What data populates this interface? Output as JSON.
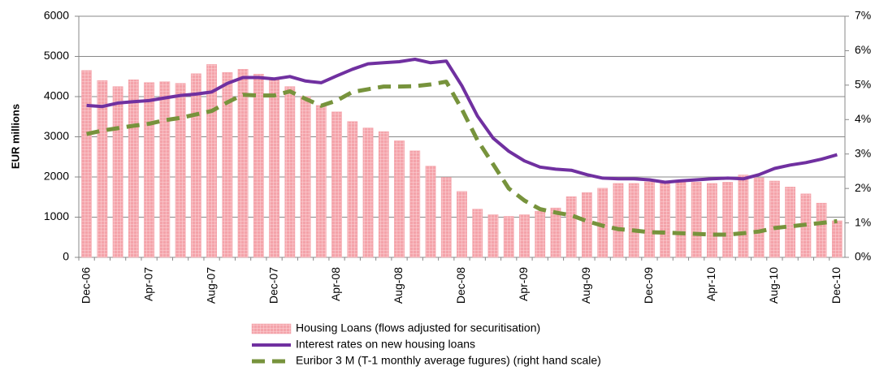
{
  "chart_data": {
    "type": "bar-line",
    "y_label": "EUR millions",
    "categories": [
      "Dec-06",
      null,
      null,
      null,
      "Apr-07",
      null,
      null,
      null,
      "Aug-07",
      null,
      null,
      null,
      "Dec-07",
      null,
      null,
      null,
      "Apr-08",
      null,
      null,
      null,
      "Aug-08",
      null,
      null,
      null,
      "Dec-08",
      null,
      null,
      null,
      "Apr-09",
      null,
      null,
      null,
      "Aug-09",
      null,
      null,
      null,
      "Dec-09",
      null,
      null,
      null,
      "Apr-10",
      null,
      null,
      null,
      "Aug-10",
      null,
      null,
      null,
      "Dec-10"
    ],
    "series": [
      {
        "name": "Housing Loans (flows adjusted for securitisation)",
        "type": "bar",
        "color": "#f4a3aa",
        "values": [
          4650,
          4400,
          4250,
          4420,
          4350,
          4370,
          4330,
          4570,
          4800,
          4600,
          4680,
          4560,
          4450,
          4250,
          4000,
          3780,
          3620,
          3380,
          3220,
          3130,
          2900,
          2650,
          2270,
          1990,
          1640,
          1200,
          1060,
          1020,
          1060,
          1150,
          1230,
          1510,
          1610,
          1720,
          1840,
          1840,
          1880,
          1870,
          1870,
          1870,
          1840,
          1870,
          2050,
          1980,
          1900,
          1750,
          1580,
          1350,
          910
        ]
      },
      {
        "name": "Interest rates on new housing loans",
        "type": "line",
        "axis": "y2",
        "color": "#7030a0",
        "dashed": false,
        "values": [
          4.41,
          4.38,
          4.48,
          4.52,
          4.55,
          4.63,
          4.7,
          4.74,
          4.8,
          5.05,
          5.22,
          5.22,
          5.18,
          5.25,
          5.12,
          5.07,
          5.27,
          5.46,
          5.62,
          5.65,
          5.68,
          5.75,
          5.65,
          5.7,
          4.98,
          4.1,
          3.46,
          3.08,
          2.8,
          2.62,
          2.56,
          2.53,
          2.4,
          2.3,
          2.28,
          2.28,
          2.25,
          2.18,
          2.22,
          2.25,
          2.28,
          2.3,
          2.28,
          2.4,
          2.58,
          2.68,
          2.75,
          2.85,
          2.98
        ]
      },
      {
        "name": "Euribor 3 M (T-1 monthly average fugures) (right hand scale)",
        "type": "line",
        "axis": "y2",
        "color": "#77933c",
        "dashed": true,
        "values": [
          3.58,
          3.68,
          3.75,
          3.82,
          3.88,
          3.98,
          4.05,
          4.15,
          4.25,
          4.5,
          4.72,
          4.7,
          4.7,
          4.82,
          4.6,
          4.4,
          4.55,
          4.8,
          4.88,
          4.96,
          4.96,
          4.97,
          5.02,
          5.1,
          4.3,
          3.4,
          2.7,
          2.0,
          1.65,
          1.4,
          1.3,
          1.22,
          1.05,
          0.92,
          0.82,
          0.78,
          0.73,
          0.72,
          0.7,
          0.68,
          0.66,
          0.66,
          0.7,
          0.75,
          0.85,
          0.9,
          0.95,
          1.0,
          1.05
        ]
      }
    ],
    "ylim": [
      0,
      6000
    ],
    "yticks": [
      0,
      1000,
      2000,
      3000,
      4000,
      5000,
      6000
    ],
    "y2lim": [
      0,
      7
    ],
    "y2ticks": [
      {
        "value": 0,
        "label": "0%"
      },
      {
        "value": 1,
        "label": "1%"
      },
      {
        "value": 2,
        "label": "2%"
      },
      {
        "value": 3,
        "label": "3%"
      },
      {
        "value": 4,
        "label": "4%"
      },
      {
        "value": 5,
        "label": "5%"
      },
      {
        "value": 6,
        "label": "6%"
      },
      {
        "value": 7,
        "label": "7%"
      }
    ],
    "grid": true,
    "legend": "bottom"
  }
}
